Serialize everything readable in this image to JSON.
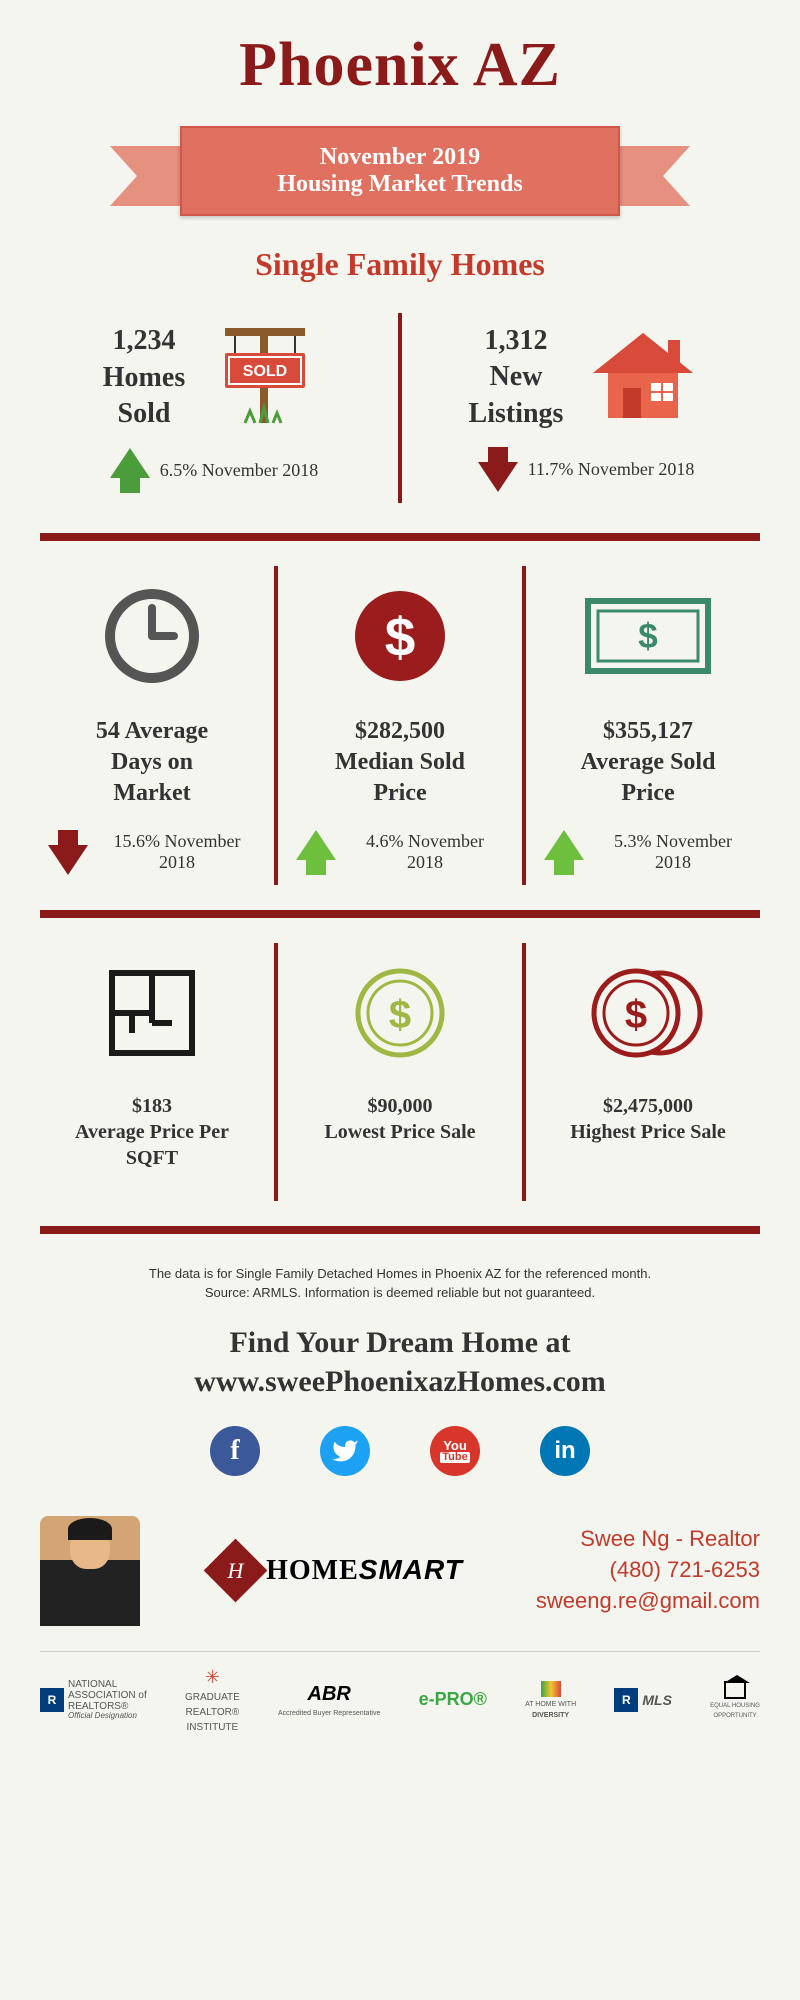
{
  "header": {
    "title": "Phoenix AZ",
    "banner_line1": "November 2019",
    "banner_line2": "Housing Market Trends",
    "banner_bg": "#e07060",
    "banner_side_bg": "#e69080",
    "subtitle": "Single Family Homes",
    "title_color": "#8b1a1a",
    "subtitle_color": "#c43a2a"
  },
  "stats_top": {
    "left": {
      "value": "1,234",
      "label1": "Homes",
      "label2": "Sold",
      "change_pct": "6.5%",
      "change_ref": "November 2018",
      "direction": "up",
      "arrow_color": "#4a9d3a",
      "sold_sign_color": "#d84a3a",
      "sold_text": "SOLD"
    },
    "right": {
      "value": "1,312",
      "label1": "New",
      "label2": "Listings",
      "change_pct": "11.7%",
      "change_ref": "November 2018",
      "direction": "down",
      "arrow_color": "#8b1a1a",
      "house_color": "#e8644a"
    }
  },
  "stats_mid": [
    {
      "icon": "clock",
      "icon_color": "#555555",
      "value": "54 Average",
      "label1": "Days on",
      "label2": "Market",
      "change_pct": "15.6%",
      "change_ref": "November 2018",
      "direction": "down",
      "arrow_color": "#8b1a1a"
    },
    {
      "icon": "dollar-circle",
      "icon_color": "#9b1c1c",
      "value": "$282,500",
      "label1": "Median Sold",
      "label2": "Price",
      "change_pct": "4.6%",
      "change_ref": "November 2018",
      "direction": "up",
      "arrow_color": "#6fbf3f"
    },
    {
      "icon": "dollar-bill",
      "icon_color": "#3a8a6a",
      "value": "$355,127",
      "label1": "Average Sold",
      "label2": "Price",
      "change_pct": "5.3%",
      "change_ref": "November 2018",
      "direction": "up",
      "arrow_color": "#6fbf3f"
    }
  ],
  "stats_bottom": [
    {
      "icon": "floorplan",
      "icon_color": "#1a1a1a",
      "value": "$183",
      "label": "Average Price Per SQFT"
    },
    {
      "icon": "dollar-circle-outline",
      "icon_color": "#9fb843",
      "value": "$90,000",
      "label": "Lowest Price Sale"
    },
    {
      "icon": "dollar-double-circle",
      "icon_color": "#9b1c1c",
      "value": "$2,475,000",
      "label": "Highest Price Sale"
    }
  ],
  "disclaimer": {
    "line1": "The data is for Single Family Detached Homes in Phoenix AZ for the referenced month.",
    "line2": "Source: ARMLS. Information is deemed reliable but not guaranteed."
  },
  "cta": {
    "line1": "Find Your Dream Home at",
    "line2": "www.sweePhoenixazHomes.com"
  },
  "socials": [
    {
      "name": "facebook",
      "glyph": "f",
      "bg": "#3b5998"
    },
    {
      "name": "twitter",
      "glyph": "t",
      "bg": "#1da1f2",
      "style": "italic"
    },
    {
      "name": "youtube",
      "glyph": "You",
      "bg": "#d8362a",
      "sub": "Tube",
      "fontsize": "11px"
    },
    {
      "name": "linkedin",
      "glyph": "in",
      "bg": "#0077b5"
    }
  ],
  "footer": {
    "brand_name_1": "HOME",
    "brand_name_2": "SMART",
    "brand_mark_letter": "H",
    "contact_name": "Swee Ng - Realtor",
    "contact_phone": "(480) 721-6253",
    "contact_email": "sweeng.re@gmail.com",
    "contact_color": "#c43a2a"
  },
  "logo_strip": [
    {
      "badge": "R",
      "text1": "NATIONAL",
      "text2": "ASSOCIATION of",
      "text3": "REALTORS®",
      "sub": "Official Designation"
    },
    {
      "text1": "GRADUATE",
      "text2": "REALTOR®",
      "text3": "INSTITUTE"
    },
    {
      "main": "ABR",
      "sub": "Accredited Buyer Representative"
    },
    {
      "main": "e-PRO®",
      "color": "#3aa843"
    },
    {
      "text1": "AT HOME WITH",
      "text2": "DIVERSITY"
    },
    {
      "badge": "R",
      "main": "MLS"
    },
    {
      "text1": "EQUAL HOUSING",
      "text2": "OPPORTUNITY"
    }
  ],
  "colors": {
    "divider": "#8b1a1a",
    "background": "#f5f5f0"
  }
}
